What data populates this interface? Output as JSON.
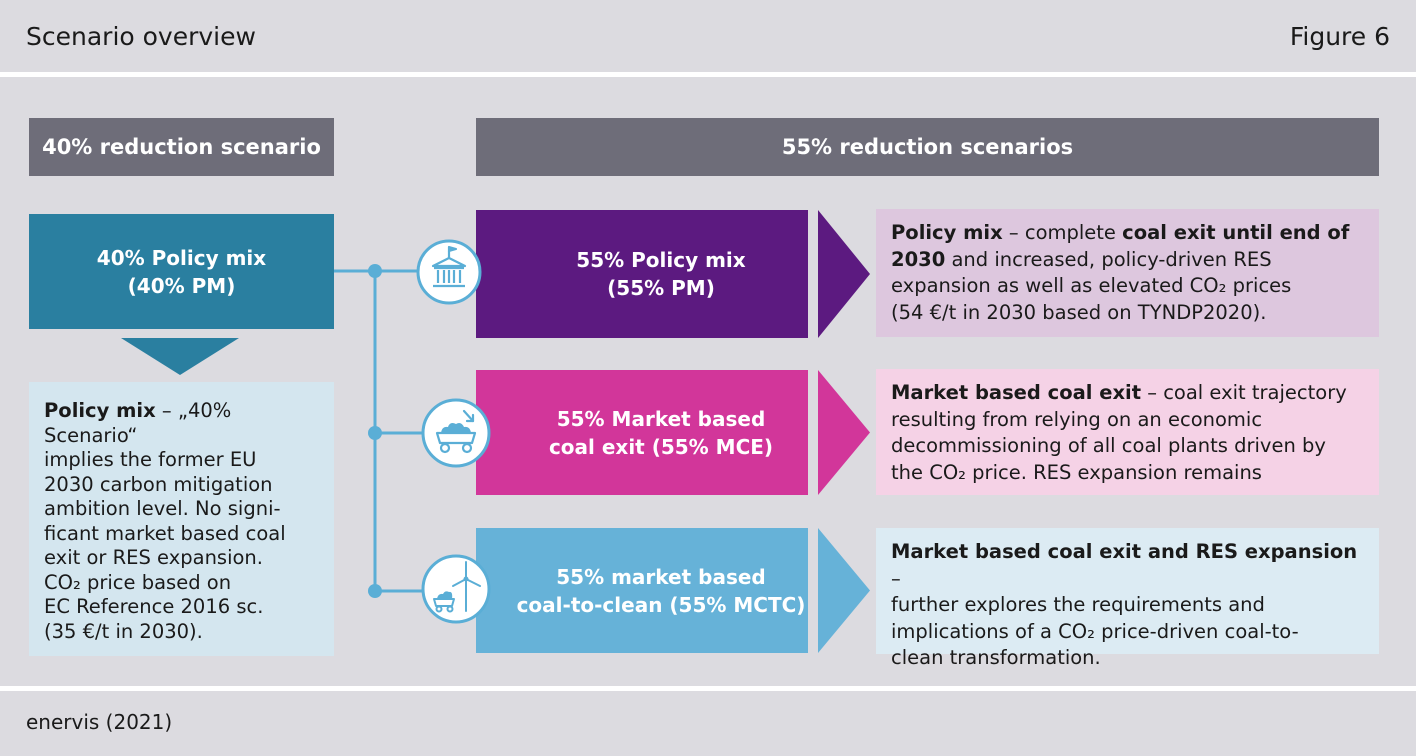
{
  "header": {
    "title": "Scenario overview",
    "figure_label": "Figure 6"
  },
  "footer": {
    "source": "enervis (2021)"
  },
  "colors": {
    "background": "#dcdbe0",
    "band_grey": "#6e6d79",
    "teal_40": "#2a7fa0",
    "light_blue_desc": "#d4e6ef",
    "connector": "#5aaed6",
    "purple_pm": "#5c1a80",
    "magenta_mce": "#d2369a",
    "blue_mctc": "#66b2d8",
    "lilac_info": "#ddc7de",
    "pink_info": "#f5d2e6",
    "pale_info": "#dcebf3"
  },
  "left": {
    "band_label": "40% reduction scenario",
    "scenario": {
      "line1": "40% Policy mix",
      "line2": "(40% PM)"
    },
    "description": {
      "bold": "Policy mix",
      "lines": [
        " – „40% Scenario“",
        "implies the former EU",
        "2030 carbon mitigation",
        "ambition level. No signi-",
        "ficant market based coal",
        "exit or RES expansion.",
        "CO₂ price based on",
        "EC Reference 2016 sc.",
        "(35 €/t in 2030)."
      ]
    }
  },
  "right": {
    "band_label": "55% reduction scenarios",
    "scenarios": [
      {
        "id": "pm",
        "icon": "government-building-icon",
        "line1": "55% Policy mix",
        "line2": "(55% PM)",
        "info_lines": [
          [
            {
              "b": true,
              "t": "Policy mix"
            },
            {
              "b": false,
              "t": " – complete "
            },
            {
              "b": true,
              "t": "coal exit until end of"
            }
          ],
          [
            {
              "b": true,
              "t": "2030"
            },
            {
              "b": false,
              "t": " and increased, policy-driven RES"
            }
          ],
          [
            {
              "b": false,
              "t": "expansion as well as elevated CO₂ prices"
            }
          ],
          [
            {
              "b": false,
              "t": "(54 €/t in 2030 based on TYNDP2020)."
            }
          ]
        ]
      },
      {
        "id": "mce",
        "icon": "coal-cart-icon",
        "line1": "55% Market based",
        "line2": "coal exit (55% MCE)",
        "info_lines": [
          [
            {
              "b": true,
              "t": "Market based coal exit"
            },
            {
              "b": false,
              "t": " – coal exit trajectory"
            }
          ],
          [
            {
              "b": false,
              "t": "resulting from relying on an economic"
            }
          ],
          [
            {
              "b": false,
              "t": "decommissioning of all coal plants driven by"
            }
          ],
          [
            {
              "b": false,
              "t": "the CO₂ price. RES expansion remains"
            }
          ]
        ]
      },
      {
        "id": "mctc",
        "icon": "wind-turbine-icon",
        "line1": "55% market based",
        "line2": "coal-to-clean (55% MCTC)",
        "info_lines": [
          [
            {
              "b": true,
              "t": "Market based coal exit and RES expansion"
            },
            {
              "b": false,
              "t": " –"
            }
          ],
          [
            {
              "b": false,
              "t": "further explores the requirements and"
            }
          ],
          [
            {
              "b": false,
              "t": "implications of a CO₂ price-driven coal-to-"
            }
          ],
          [
            {
              "b": false,
              "t": "clean transformation."
            }
          ]
        ]
      }
    ]
  }
}
